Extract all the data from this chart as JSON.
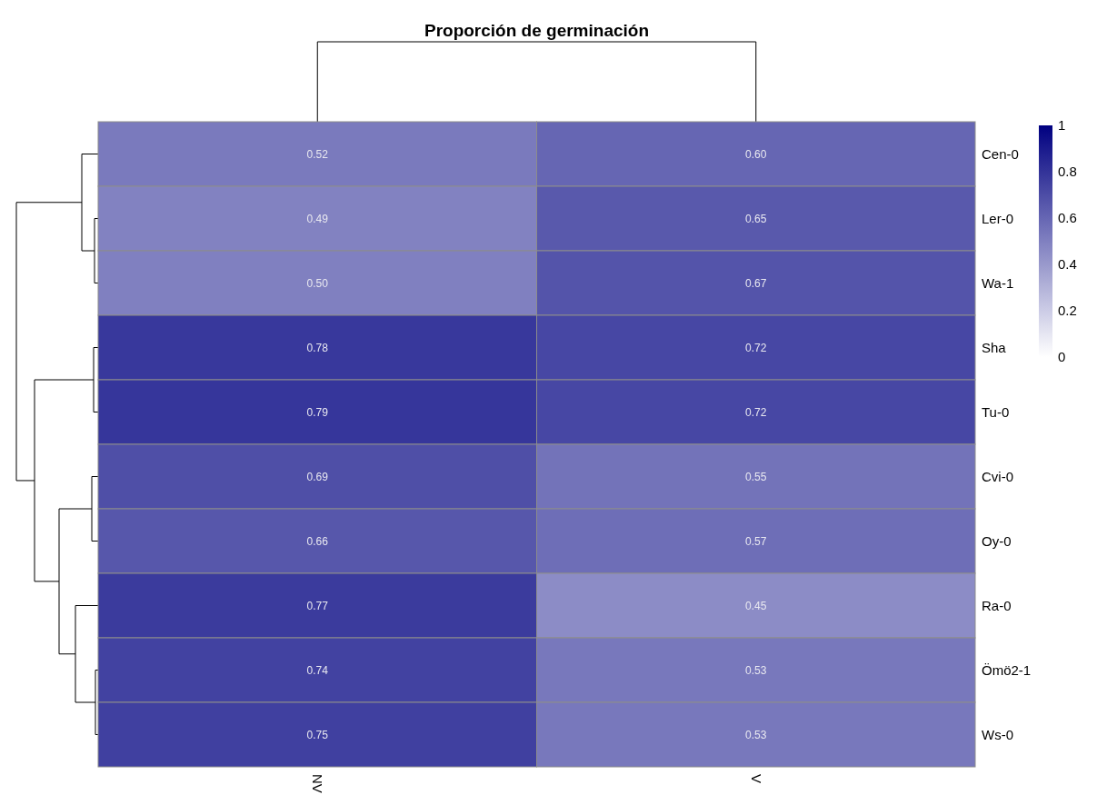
{
  "chart_data": {
    "type": "heatmap",
    "title": "Proporción de germinación",
    "categories": [
      "NV",
      "V"
    ],
    "y_categories": [
      "Cen-0",
      "Ler-0",
      "Wa-1",
      "Sha",
      "Tu-0",
      "Cvi-0",
      "Oy-0",
      "Ra-0",
      "Ömö2-1",
      "Ws-0"
    ],
    "cells": [
      [
        0.52,
        0.6
      ],
      [
        0.49,
        0.65
      ],
      [
        0.5,
        0.67
      ],
      [
        0.78,
        0.72
      ],
      [
        0.79,
        0.72
      ],
      [
        0.69,
        0.55
      ],
      [
        0.66,
        0.57
      ],
      [
        0.77,
        0.45
      ],
      [
        0.74,
        0.53
      ],
      [
        0.75,
        0.53
      ]
    ],
    "cell_labels": [
      [
        "0.52",
        "0.60"
      ],
      [
        "0.49",
        "0.65"
      ],
      [
        "0.50",
        "0.67"
      ],
      [
        "0.78",
        "0.72"
      ],
      [
        "0.79",
        "0.72"
      ],
      [
        "0.69",
        "0.55"
      ],
      [
        "0.66",
        "0.57"
      ],
      [
        "0.77",
        "0.45"
      ],
      [
        "0.74",
        "0.53"
      ],
      [
        "0.75",
        "0.53"
      ]
    ],
    "clim": [
      0,
      1
    ],
    "cticks": [
      0,
      0.2,
      0.4,
      0.6,
      0.8,
      1
    ]
  }
}
